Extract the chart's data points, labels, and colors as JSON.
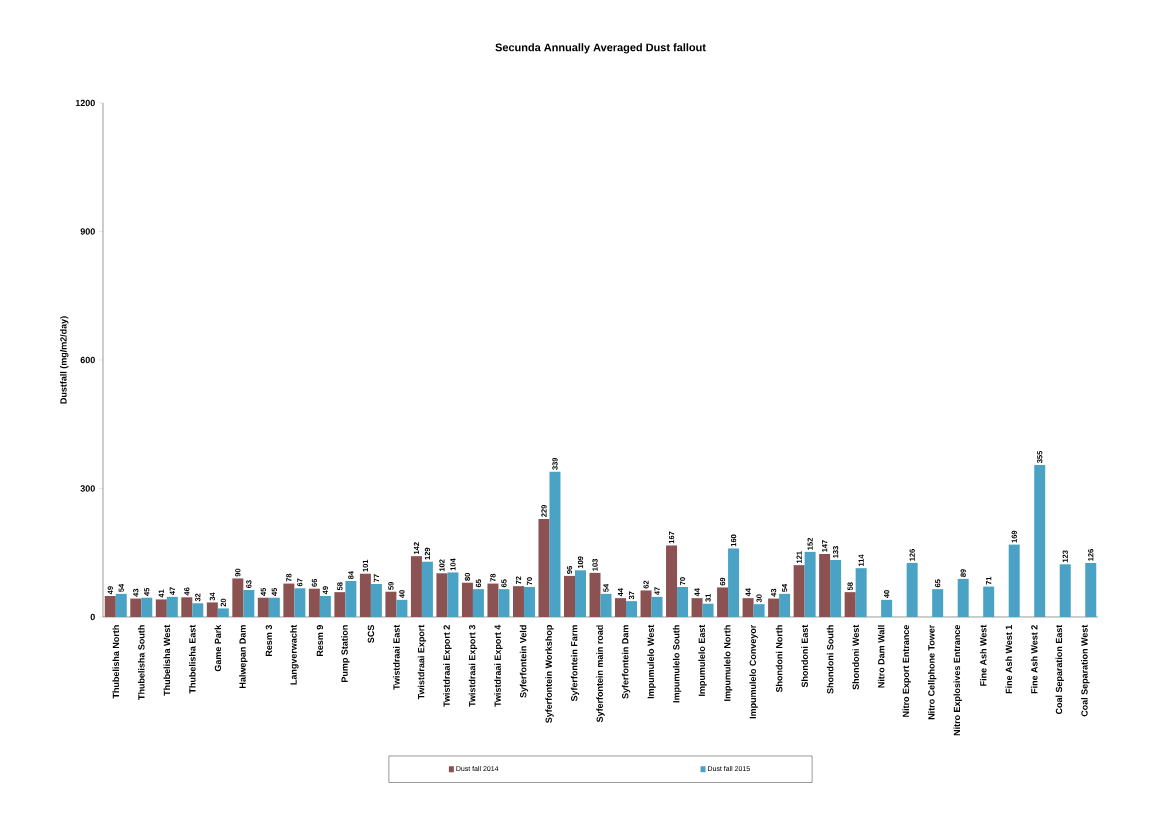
{
  "chart_data": {
    "type": "bar",
    "title": "Secunda Annually Averaged Dust fallout",
    "ylabel": "Dustfall (mg/m2/day)",
    "categories": [
      "Thubelisha North",
      "Thubelisha South",
      "Thubelisha West",
      "Thubelisha East",
      "Game Park",
      "Halwepan Dam",
      "Resm 3",
      "Langverwacht",
      "Resm 9",
      "Pump Station",
      "SCS",
      "Twistdraai East",
      "Twistdraai Export",
      "Twistdraai Export 2",
      "Twistdraai Export 3",
      "Twistdraai Export 4",
      "Syferfontein Veld",
      "Syferfontein Workshop",
      "Syferfontein Farm",
      "Syferfontein main road",
      "Syferfontein Dam",
      "Impumulelo West",
      "Impumulelo South",
      "Impumulelo East",
      "Impumulelo North",
      "Impumulelo Conveyor",
      "Shondoni North",
      "Shondoni East",
      "Shondoni South",
      "Shondoni West",
      "Nitro Dam Wall",
      "Nitro Export Entrance",
      "Nitro Cellphone Tower",
      "Nitro Explosives Entrance",
      "Fine Ash West",
      "Fine Ash West 1",
      "Fine Ash West 2",
      "Coal Separation East",
      "Coal Separation West"
    ],
    "series": [
      {
        "name": "Dust fall 2014",
        "color": "#8c5252",
        "values": [
          49,
          43,
          41,
          46,
          34,
          90,
          45,
          78,
          66,
          58,
          101,
          59,
          142,
          102,
          80,
          78,
          72,
          229,
          96,
          103,
          44,
          62,
          167,
          44,
          69,
          44,
          43,
          121,
          147,
          58,
          null,
          null,
          null,
          null,
          null,
          null,
          null,
          null,
          null
        ]
      },
      {
        "name": "Dust fall 2015",
        "color": "#4aa3c4",
        "values": [
          54,
          45,
          47,
          32,
          20,
          63,
          45,
          67,
          49,
          84,
          77,
          40,
          129,
          104,
          65,
          65,
          70,
          339,
          109,
          54,
          37,
          47,
          70,
          31,
          160,
          30,
          54,
          152,
          133,
          114,
          40,
          126,
          65,
          89,
          71,
          169,
          355,
          123,
          126
        ]
      }
    ],
    "ylim": [
      0,
      1200
    ],
    "yticks": [
      0,
      300,
      600,
      900,
      1200
    ],
    "data_labels": true,
    "legend": "bottom"
  }
}
